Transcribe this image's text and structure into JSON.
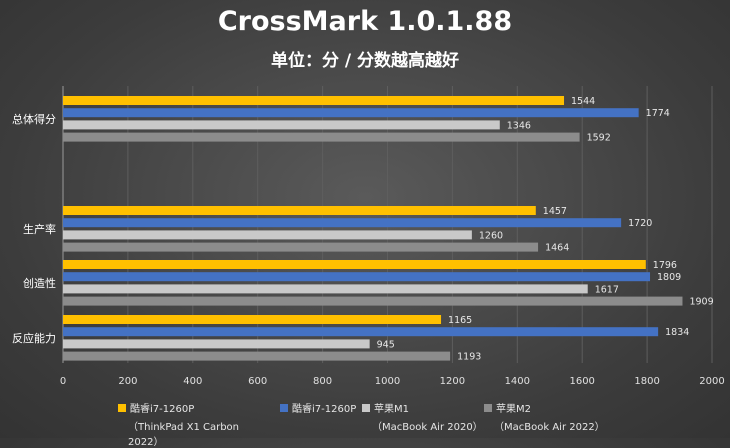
{
  "chart_data": {
    "type": "bar",
    "orientation": "horizontal",
    "title": "CrossMark 1.0.1.88",
    "subtitle": "单位：分 / 分数越高越好",
    "categories": [
      "总体得分",
      "生产率",
      "创造性",
      "反应能力"
    ],
    "series": [
      {
        "name": "酷睿i7-1260P",
        "note": "（ThinkPad X1 Carbon 2022）",
        "color": "#ffc000",
        "values": [
          1544,
          1457,
          1796,
          1165
        ]
      },
      {
        "name": "酷睿i7-1260P",
        "note": "",
        "color": "#4472c4",
        "values": [
          1774,
          1720,
          1809,
          1834
        ]
      },
      {
        "name": "苹果M1",
        "note": "（MacBook Air 2020）",
        "color": "#c9c9c9",
        "values": [
          1346,
          1260,
          1617,
          945
        ]
      },
      {
        "name": "苹果M2",
        "note": "（MacBook Air 2022）",
        "color": "#8c8c8c",
        "values": [
          1592,
          1464,
          1909,
          1193
        ]
      }
    ],
    "xlim": [
      0,
      2000
    ],
    "x_ticks": [
      0,
      200,
      400,
      600,
      800,
      1000,
      1200,
      1400,
      1600,
      1800,
      2000
    ],
    "grid": true,
    "legend_position": "bottom"
  }
}
